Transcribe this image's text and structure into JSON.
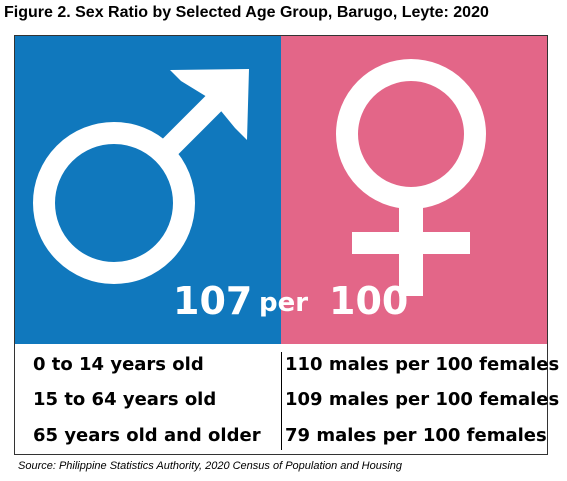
{
  "figure": {
    "title": "Figure 2. Sex Ratio by Selected Age Group, Barugo, Leyte: 2020",
    "source": "Source: Philippine Statistics Authority, 2020 Census of Population and Housing"
  },
  "colors": {
    "male_panel": "#1078BD",
    "female_panel": "#E36688",
    "symbol": "#FFFFFF"
  },
  "icons": {
    "male": "male-symbol-icon",
    "female": "female-symbol-icon"
  },
  "overall_ratio": {
    "males": "107",
    "connector": "per",
    "females": "100"
  },
  "age_groups": [
    {
      "label": "0 to 14 years old",
      "value": "110 males per 100 females"
    },
    {
      "label": "15 to 64 years old",
      "value": "109 males per 100 females"
    },
    {
      "label": "65 years old and older",
      "value": "79 males per 100 females"
    }
  ]
}
